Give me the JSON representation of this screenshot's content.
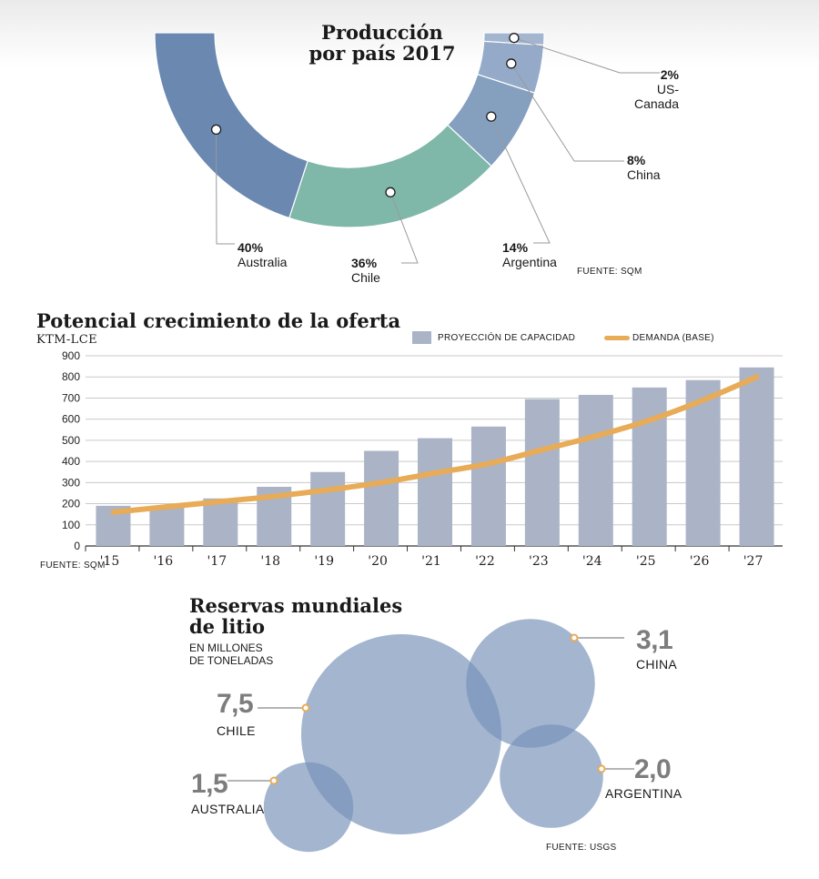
{
  "chart_data": [
    {
      "type": "pie",
      "title": "Producción por país 2017",
      "title_lines": [
        "Producción",
        "por país 2017"
      ],
      "slices": [
        {
          "label": "Australia",
          "value": 40,
          "pct": "40%",
          "color": "#6a88b0"
        },
        {
          "label": "Chile",
          "value": 36,
          "pct": "36%",
          "color": "#7fb7a9"
        },
        {
          "label": "Argentina",
          "value": 14,
          "pct": "14%",
          "color": "#859fbf"
        },
        {
          "label": "China",
          "value": 8,
          "pct": "8%",
          "color": "#94aac8"
        },
        {
          "label": "US-Canada",
          "value": 2,
          "pct": "2%",
          "color": "#a3b5cf"
        }
      ],
      "source": "FUENTE: SQM"
    },
    {
      "type": "bar",
      "title": "Potencial crecimiento de la oferta",
      "ylabel": "KTM-LCE",
      "ylim": [
        0,
        900
      ],
      "yticks": [
        0,
        100,
        200,
        300,
        400,
        500,
        600,
        700,
        800,
        900
      ],
      "grid": true,
      "categories": [
        "'15",
        "'16",
        "'17",
        "'18",
        "'19",
        "'20",
        "'21",
        "'22",
        "'23",
        "'24",
        "'25",
        "'26",
        "'27"
      ],
      "series": [
        {
          "name": "PROYECCIÓN DE CAPACIDAD",
          "type": "bar",
          "color": "#aab4c6",
          "values": [
            190,
            190,
            225,
            280,
            350,
            450,
            510,
            565,
            695,
            715,
            750,
            785,
            845
          ]
        },
        {
          "name": "DEMANDA (BASE)",
          "type": "line",
          "color": "#e8ab57",
          "values": [
            160,
            185,
            210,
            235,
            265,
            300,
            345,
            390,
            455,
            520,
            595,
            690,
            800
          ]
        }
      ],
      "legend": "top-right",
      "source": "FUENTE: SQM"
    },
    {
      "type": "bubble",
      "title": "Reservas mundiales de litio",
      "title_lines": [
        "Reservas mundiales",
        "de litio"
      ],
      "subtitle_lines": [
        "EN MILLONES",
        "DE TONELADAS"
      ],
      "items": [
        {
          "label": "CHILE",
          "value": 7.5,
          "value_text": "7,5"
        },
        {
          "label": "CHINA",
          "value": 3.1,
          "value_text": "3,1"
        },
        {
          "label": "ARGENTINA",
          "value": 2.0,
          "value_text": "2,0"
        },
        {
          "label": "AUSTRALIA",
          "value": 1.5,
          "value_text": "1,5"
        }
      ],
      "bubble_color": "#7892b8",
      "marker_color": "#e8ab57",
      "source": "FUENTE: USGS"
    }
  ]
}
